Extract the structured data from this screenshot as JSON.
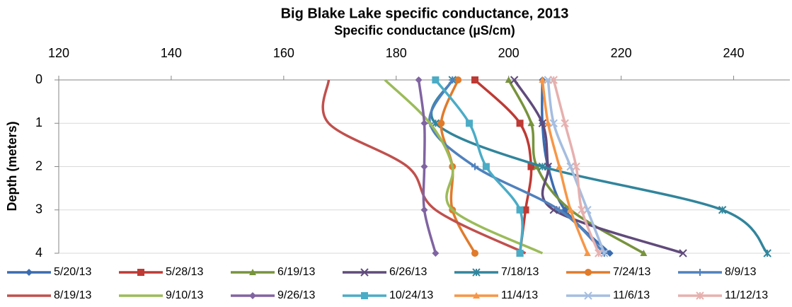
{
  "chart_data": {
    "type": "line",
    "orientation": "horizontal",
    "title": "Big Blake Lake specific conductance, 2013",
    "x_label": "Specific conductance (µS/cm)",
    "y_label": "Depth (meters)",
    "depths": [
      0,
      1,
      2,
      3,
      4
    ],
    "xlim": [
      120,
      250
    ],
    "xticks": [
      120,
      140,
      160,
      180,
      200,
      220,
      240
    ],
    "ylim": [
      0,
      4
    ],
    "yticks": [
      0,
      1,
      2,
      3,
      4
    ],
    "y_inverted": true,
    "grid": true,
    "legend": "bottom",
    "series": [
      {
        "name": "5/20/13",
        "color": "#3b6cb0",
        "marker": "diamond",
        "values": [
          206,
          206,
          207,
          210,
          218
        ]
      },
      {
        "name": "5/28/13",
        "color": "#be3a34",
        "marker": "square",
        "values": [
          194,
          202,
          204,
          203,
          202
        ]
      },
      {
        "name": "6/19/13",
        "color": "#77933c",
        "marker": "triangle",
        "values": [
          200,
          204,
          205,
          211,
          224
        ]
      },
      {
        "name": "6/26/13",
        "color": "#604a7b",
        "marker": "x",
        "values": [
          201,
          206,
          207,
          208,
          231
        ]
      },
      {
        "name": "7/18/13",
        "color": "#31859c",
        "marker": "asterisk",
        "values": [
          190,
          187,
          206,
          238,
          246
        ]
      },
      {
        "name": "7/24/13",
        "color": "#e07b2b",
        "marker": "circle",
        "values": [
          191,
          188,
          190,
          190,
          194
        ]
      },
      {
        "name": "8/9/13",
        "color": "#4f81bd",
        "marker": "plus",
        "values": [
          190,
          186,
          194,
          209,
          217
        ]
      },
      {
        "name": "8/19/13",
        "color": "#c0504d",
        "marker": "none",
        "values": [
          168,
          168,
          182,
          187,
          203
        ]
      },
      {
        "name": "9/10/13",
        "color": "#9bbb59",
        "marker": "none",
        "values": [
          178,
          186,
          190,
          190,
          206
        ]
      },
      {
        "name": "9/26/13",
        "color": "#8064a2",
        "marker": "diamond",
        "values": [
          184,
          185,
          185,
          185,
          187
        ]
      },
      {
        "name": "10/24/13",
        "color": "#4bacc6",
        "marker": "square",
        "values": [
          187,
          193,
          196,
          202,
          202
        ]
      },
      {
        "name": "11/4/13",
        "color": "#f79646",
        "marker": "triangle",
        "values": [
          206,
          207,
          209,
          211,
          214
        ]
      },
      {
        "name": "11/6/13",
        "color": "#a5bde0",
        "marker": "x",
        "values": [
          207,
          208,
          211,
          214,
          217
        ]
      },
      {
        "name": "11/12/13",
        "color": "#e6b0ae",
        "marker": "asterisk",
        "values": [
          208,
          210,
          212,
          213,
          216
        ]
      }
    ]
  }
}
